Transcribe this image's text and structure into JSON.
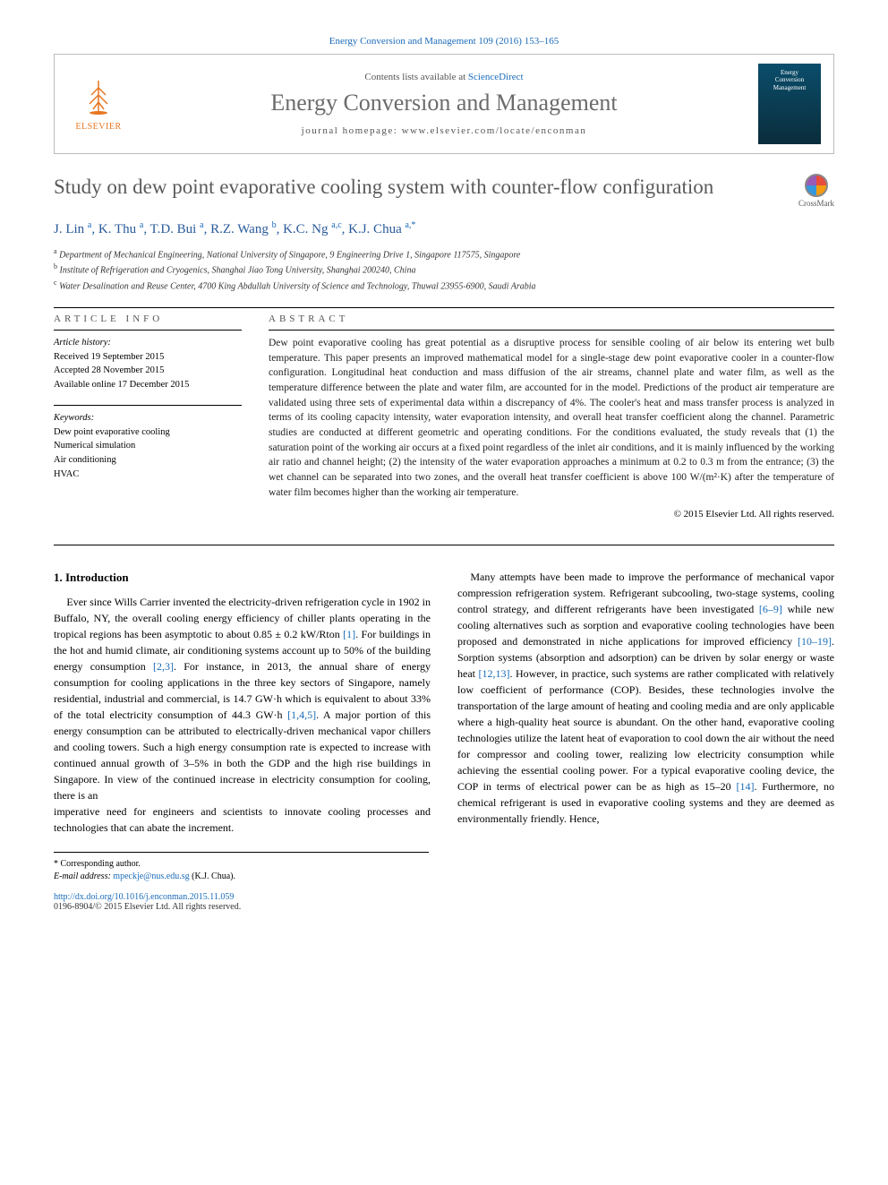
{
  "header": {
    "citation_prefix": "Energy Conversion and Management 109 (2016) 153–165",
    "contents_line_prefix": "Contents lists available at ",
    "contents_link": "ScienceDirect",
    "journal_name": "Energy Conversion and Management",
    "homepage_prefix": "journal homepage: ",
    "homepage_url": "www.elsevier.com/locate/enconman",
    "publisher_logo_text": "ELSEVIER",
    "cover_line1": "Energy",
    "cover_line2": "Conversion",
    "cover_line3": "Management"
  },
  "title": "Study on dew point evaporative cooling system with counter-flow configuration",
  "crossmark_label": "CrossMark",
  "authors_html": "J. Lin <sup>a</sup>, K. Thu <sup>a</sup>, T.D. Bui <sup>a</sup>, R.Z. Wang <sup>b</sup>, K.C. Ng <sup>a,c</sup>, K.J. Chua <sup>a,*</sup>",
  "affiliations": [
    {
      "sup": "a",
      "text": "Department of Mechanical Engineering, National University of Singapore, 9 Engineering Drive 1, Singapore 117575, Singapore"
    },
    {
      "sup": "b",
      "text": "Institute of Refrigeration and Cryogenics, Shanghai Jiao Tong University, Shanghai 200240, China"
    },
    {
      "sup": "c",
      "text": "Water Desalination and Reuse Center, 4700 King Abdullah University of Science and Technology, Thuwal 23955-6900, Saudi Arabia"
    }
  ],
  "article_info": {
    "label": "ARTICLE INFO",
    "history_header": "Article history:",
    "received": "Received 19 September 2015",
    "accepted": "Accepted 28 November 2015",
    "online": "Available online 17 December 2015",
    "keywords_header": "Keywords:",
    "keywords": [
      "Dew point evaporative cooling",
      "Numerical simulation",
      "Air conditioning",
      "HVAC"
    ]
  },
  "abstract": {
    "label": "ABSTRACT",
    "text": "Dew point evaporative cooling has great potential as a disruptive process for sensible cooling of air below its entering wet bulb temperature. This paper presents an improved mathematical model for a single-stage dew point evaporative cooler in a counter-flow configuration. Longitudinal heat conduction and mass diffusion of the air streams, channel plate and water film, as well as the temperature difference between the plate and water film, are accounted for in the model. Predictions of the product air temperature are validated using three sets of experimental data within a discrepancy of 4%. The cooler's heat and mass transfer process is analyzed in terms of its cooling capacity intensity, water evaporation intensity, and overall heat transfer coefficient along the channel. Parametric studies are conducted at different geometric and operating conditions. For the conditions evaluated, the study reveals that (1) the saturation point of the working air occurs at a fixed point regardless of the inlet air conditions, and it is mainly influenced by the working air ratio and channel height; (2) the intensity of the water evaporation approaches a minimum at 0.2 to 0.3 m from the entrance; (3) the wet channel can be separated into two zones, and the overall heat transfer coefficient is above 100 W/(m²·K) after the temperature of water film becomes higher than the working air temperature.",
    "copyright": "© 2015 Elsevier Ltd. All rights reserved."
  },
  "body": {
    "section_heading": "1. Introduction",
    "p1_pre": "Ever since Wills Carrier invented the electricity-driven refrigeration cycle in 1902 in Buffalo, NY, the overall cooling energy efficiency of chiller plants operating in the tropical regions has been asymptotic to about 0.85 ± 0.2 kW/Rton ",
    "p1_ref1": "[1]",
    "p1_mid1": ". For buildings in the hot and humid climate, air conditioning systems account up to 50% of the building energy consumption ",
    "p1_ref2": "[2,3]",
    "p1_mid2": ". For instance, in 2013, the annual share of energy consumption for cooling applications in the three key sectors of Singapore, namely residential, industrial and commercial, is 14.7 GW·h which is equivalent to about 33% of the total electricity consumption of 44.3 GW·h ",
    "p1_ref3": "[1,4,5]",
    "p1_post": ". A major portion of this energy consumption can be attributed to electrically-driven mechanical vapor chillers and cooling towers. Such a high energy consumption rate is expected to increase with continued annual growth of 3–5% in both the GDP and the high rise buildings in Singapore. In view of the continued increase in electricity consumption for cooling, there is an",
    "p2_pre": "imperative need for engineers and scientists to innovate cooling processes and technologies that can abate the increment.",
    "p3_pre": "Many attempts have been made to improve the performance of mechanical vapor compression refrigeration system. Refrigerant subcooling, two-stage systems, cooling control strategy, and different refrigerants have been investigated ",
    "p3_ref1": "[6–9]",
    "p3_mid1": " while new cooling alternatives such as sorption and evaporative cooling technologies have been proposed and demonstrated in niche applications for improved efficiency ",
    "p3_ref2": "[10–19]",
    "p3_mid2": ". Sorption systems (absorption and adsorption) can be driven by solar energy or waste heat ",
    "p3_ref3": "[12,13]",
    "p3_mid3": ". However, in practice, such systems are rather complicated with relatively low coefficient of performance (COP). Besides, these technologies involve the transportation of the large amount of heating and cooling media and are only applicable where a high-quality heat source is abundant. On the other hand, evaporative cooling technologies utilize the latent heat of evaporation to cool down the air without the need for compressor and cooling tower, realizing low electricity consumption while achieving the essential cooling power. For a typical evaporative cooling device, the COP in terms of electrical power can be as high as 15–20 ",
    "p3_ref4": "[14]",
    "p3_post": ". Furthermore, no chemical refrigerant is used in evaporative cooling systems and they are deemed as environmentally friendly. Hence,"
  },
  "footnote": {
    "corr_label": "* Corresponding author.",
    "email_label": "E-mail address: ",
    "email": "mpeckje@nus.edu.sg",
    "email_suffix": " (K.J. Chua)."
  },
  "footer": {
    "doi": "http://dx.doi.org/10.1016/j.enconman.2015.11.059",
    "issn_line": "0196-8904/© 2015 Elsevier Ltd. All rights reserved."
  },
  "colors": {
    "link": "#1a6bb8",
    "title_gray": "#5a5a5a",
    "author_blue": "#2a5a9a",
    "elsevier_orange": "#e87722"
  }
}
